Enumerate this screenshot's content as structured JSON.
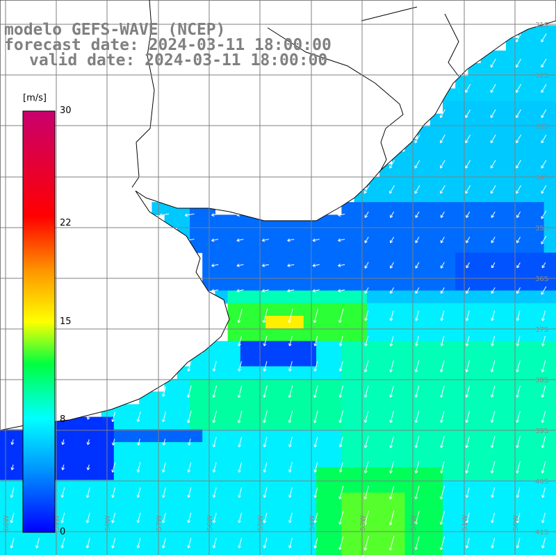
{
  "title": {
    "line1": "modelo GEFS-WAVE (NCEP)",
    "line2": "forecast date: 2024-03-11 18:00:00",
    "line3": "valid date: 2024-03-11 18:00:00"
  },
  "colorbar": {
    "unit": "[m/s]",
    "min": 0,
    "max": 30,
    "ticks": [
      "30",
      "22",
      "15",
      "8",
      "0"
    ],
    "tick_values": [
      30,
      22,
      15,
      8,
      0
    ]
  },
  "map": {
    "variable": "wind speed and direction",
    "lat_labels": [
      "31S",
      "32S",
      "33S",
      "34S",
      "35S",
      "36S",
      "37S",
      "38S",
      "39S",
      "40S",
      "41S"
    ],
    "lat_label_values": [
      -31,
      -32,
      -33,
      -34,
      -35,
      -36,
      -37,
      -38,
      -39,
      -40,
      -41
    ],
    "lon_labels": [
      "60W",
      "59W",
      "58W",
      "57W",
      "56W",
      "55W",
      "54W",
      "53W",
      "52W",
      "51W",
      "50W"
    ],
    "lon_label_values": [
      -60,
      -59,
      -58,
      -57,
      -56,
      -55,
      -54,
      -53,
      -52,
      -51,
      -50
    ],
    "region": "Rio de la Plata / South-western Atlantic"
  },
  "colors": {
    "land": "#ffffff",
    "coast": "#000000",
    "grid": "#7f7f7f",
    "title": "#808080",
    "arrows": "#ffffff"
  }
}
